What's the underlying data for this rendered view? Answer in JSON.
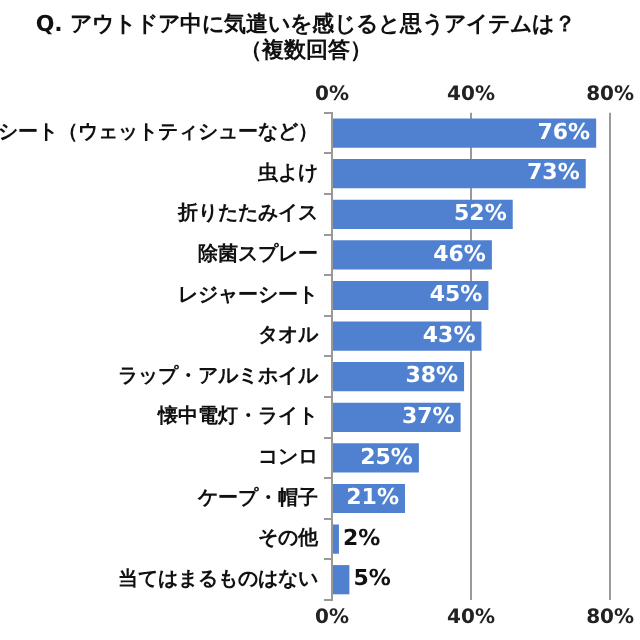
{
  "chart_data": {
    "type": "bar",
    "orientation": "horizontal",
    "title": "Q. アウトドア中に気遣いを感じると思うアイテムは？（複数回答）",
    "categories": [
      "シート（ウェットティシューなど）",
      "虫よけ",
      "折りたたみイス",
      "除菌スプレー",
      "レジャーシート",
      "タオル",
      "ラップ・アルミホイル",
      "懐中電灯・ライト",
      "コンロ",
      "ケープ・帽子",
      "その他",
      "当てはまるものはない"
    ],
    "values": [
      76,
      73,
      52,
      46,
      45,
      43,
      38,
      37,
      25,
      21,
      2,
      5
    ],
    "color": "#4f81d0",
    "data_labels": true,
    "value_labels": [
      "76%",
      "73%",
      "52%",
      "46%",
      "45%",
      "43%",
      "38%",
      "37%",
      "25%",
      "21%",
      "2%",
      "5%"
    ],
    "xlim": [
      0,
      80
    ],
    "xticks": [
      {
        "value": 0,
        "label": "0%"
      },
      {
        "value": 40,
        "label": "40%"
      },
      {
        "value": 80,
        "label": "80%"
      }
    ],
    "x2lim": [
      0,
      80
    ],
    "x2ticks": [
      {
        "value": 0,
        "label": "0%"
      },
      {
        "value": 40,
        "label": "40%"
      },
      {
        "value": 80,
        "label": "80%"
      }
    ],
    "grid": "x",
    "legend": false
  }
}
